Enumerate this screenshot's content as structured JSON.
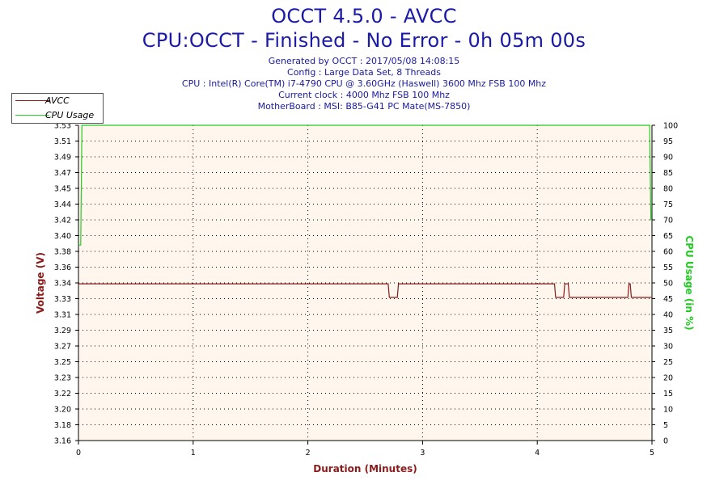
{
  "header": {
    "title": "OCCT 4.5.0 - AVCC",
    "subtitle": "CPU:OCCT - Finished - No Error - 0h 05m 00s",
    "info_lines": [
      "Generated by OCCT : 2017/05/08 14:08:15",
      "Config : Large Data Set, 8 Threads",
      "CPU : Intel(R) Core(TM) i7-4790 CPU @ 3.60GHz (Haswell) 3600 Mhz FSB 100 Mhz",
      "Current clock : 4000 Mhz FSB 100 Mhz",
      "MotherBoard : MSI: B85-G41 PC Mate(MS-7850)"
    ]
  },
  "legend": {
    "items": [
      {
        "label": "AVCC",
        "color": "#8b1a1a"
      },
      {
        "label": "CPU Usage",
        "color": "#22cc22"
      }
    ]
  },
  "chart_data": {
    "type": "line",
    "xlabel": "Duration (Minutes)",
    "ylabel": "Voltage (V)",
    "y2label": "CPU Usage (in %)",
    "xlim": [
      0,
      5
    ],
    "ylim": [
      3.16,
      3.53
    ],
    "y2lim": [
      0,
      100
    ],
    "x_ticks": [
      0,
      1,
      2,
      3,
      4,
      5
    ],
    "y_ticks": [
      "3.16",
      "3.18",
      "3.20",
      "3.22",
      "3.23",
      "3.25",
      "3.27",
      "3.29",
      "3.31",
      "3.33",
      "3.34",
      "3.36",
      "3.38",
      "3.40",
      "3.42",
      "3.44",
      "3.45",
      "3.47",
      "3.49",
      "3.51",
      "3.53"
    ],
    "y2_ticks": [
      0,
      5,
      10,
      15,
      20,
      25,
      30,
      35,
      40,
      45,
      50,
      55,
      60,
      65,
      70,
      75,
      80,
      85,
      90,
      95,
      100
    ],
    "grid": true,
    "legend_position": "top-left",
    "plot_background": "#fff7ee",
    "series": [
      {
        "name": "AVCC",
        "color": "#8b1a1a",
        "axis": "left",
        "x": [
          0,
          2.7,
          2.71,
          2.78,
          2.79,
          4.15,
          4.16,
          4.23,
          4.24,
          4.27,
          4.28,
          4.79,
          4.8,
          4.81,
          4.82,
          5.0
        ],
        "y": [
          3.344,
          3.344,
          3.328,
          3.328,
          3.344,
          3.344,
          3.328,
          3.328,
          3.344,
          3.344,
          3.328,
          3.328,
          3.344,
          3.344,
          3.328,
          3.328
        ]
      },
      {
        "name": "CPU Usage",
        "color": "#22cc22",
        "axis": "right",
        "x": [
          0,
          0.02,
          0.03,
          4.98,
          4.99,
          5.0
        ],
        "y": [
          62,
          62,
          100,
          100,
          70,
          70
        ]
      }
    ]
  }
}
